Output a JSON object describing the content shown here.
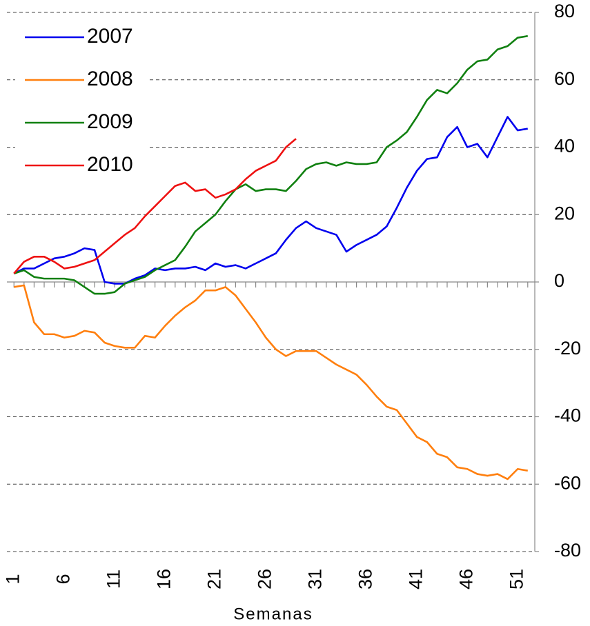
{
  "chart_data": {
    "type": "line",
    "x_label": "Semanas",
    "x": [
      1,
      2,
      3,
      4,
      5,
      6,
      7,
      8,
      9,
      10,
      11,
      12,
      13,
      14,
      15,
      16,
      17,
      18,
      19,
      20,
      21,
      22,
      23,
      24,
      25,
      26,
      27,
      28,
      29,
      30,
      31,
      32,
      33,
      34,
      35,
      36,
      37,
      38,
      39,
      40,
      41,
      42,
      43,
      44,
      45,
      46,
      47,
      48,
      49,
      50,
      51,
      52
    ],
    "xlim": [
      0.3,
      52.7
    ],
    "xticks": [
      1,
      6,
      11,
      16,
      21,
      26,
      31,
      36,
      41,
      46,
      51
    ],
    "ylim": [
      -80,
      80
    ],
    "yticks": [
      -80,
      -60,
      -40,
      -20,
      0,
      20,
      40,
      60,
      80
    ],
    "grid": true,
    "legend": "upper-left",
    "series": [
      {
        "name": "2007",
        "color": "#0000ee",
        "values": [
          2.5,
          4,
          4,
          5.5,
          7,
          7.5,
          8.5,
          10,
          9.5,
          0,
          -0.5,
          -0.5,
          1,
          2,
          4,
          3.5,
          4,
          4,
          4.5,
          3.5,
          5.5,
          4.5,
          5,
          4,
          5.5,
          7,
          8.5,
          12.5,
          16,
          18,
          16,
          15,
          14,
          9,
          11,
          12.5,
          14,
          16.5,
          22,
          28,
          33,
          36.5,
          37,
          43,
          46,
          40,
          41,
          37,
          43,
          49,
          45,
          45.5
        ]
      },
      {
        "name": "2008",
        "color": "#ff7f0e",
        "values": [
          -1.5,
          -1,
          -12,
          -15.5,
          -15.5,
          -16.5,
          -16,
          -14.5,
          -15,
          -18,
          -19,
          -19.5,
          -19.5,
          -16,
          -16.5,
          -13,
          -10,
          -7.5,
          -5.5,
          -2.5,
          -2.5,
          -1.5,
          -4,
          -8,
          -12,
          -16.5,
          -20,
          -22,
          -20.5,
          -20.5,
          -20.5,
          -22.5,
          -24.5,
          -26,
          -27.5,
          -30.5,
          -34,
          -37,
          -38,
          -42,
          -46,
          -47.5,
          -51,
          -52,
          -55,
          -55.5,
          -57,
          -57.5,
          -57,
          -58.5,
          -55.5,
          -56
        ]
      },
      {
        "name": "2009",
        "color": "#108010",
        "values": [
          2.5,
          3.5,
          1.5,
          1,
          1,
          1,
          0.5,
          -1.5,
          -3.5,
          -3.5,
          -3,
          -0.5,
          0.5,
          1.5,
          3.5,
          5,
          6.5,
          10.5,
          15,
          17.5,
          20,
          24,
          27.5,
          29,
          27,
          27.5,
          27.5,
          27,
          30,
          33.5,
          35,
          35.5,
          34.5,
          35.5,
          35,
          35,
          35.5,
          40,
          42,
          44.5,
          49,
          54,
          57,
          56,
          59,
          63,
          65.5,
          66,
          69,
          70,
          72.5,
          73
        ]
      },
      {
        "name": "2010",
        "color": "#ee1111",
        "values": [
          2.5,
          6,
          7.5,
          7.5,
          6,
          4,
          4.5,
          5.5,
          6.5,
          9,
          11.5,
          14,
          16,
          19.5,
          22.5,
          25.5,
          28.5,
          29.5,
          27,
          27.5,
          25,
          26,
          27.5,
          30.5,
          33,
          34.5,
          36,
          40,
          42.5,
          null,
          null,
          null,
          null,
          null,
          null,
          null,
          null,
          null,
          null,
          null,
          null,
          null,
          null,
          null,
          null,
          null,
          null,
          null,
          null,
          null,
          null,
          null
        ]
      }
    ]
  }
}
